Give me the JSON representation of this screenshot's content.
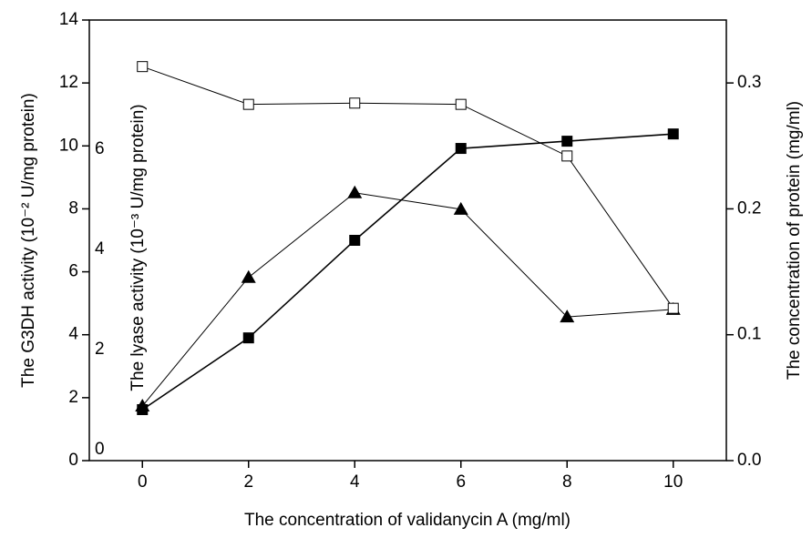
{
  "chart_data": {
    "type": "line",
    "x_label": "The concentration of validanycin A (mg/ml)",
    "y_label": "The G3DH activity (10⁻² U/mg protein)",
    "y3_label": "The lyase activity (10⁻³ U/mg protein)",
    "y2_label": "The concentration of protein (mg/ml)",
    "x": [
      0,
      2,
      4,
      6,
      8,
      10
    ],
    "xlim": [
      -1,
      11
    ],
    "xticks": [
      0,
      2,
      4,
      6,
      8,
      10
    ],
    "ylim": [
      0,
      14
    ],
    "yticks": [
      0,
      2,
      4,
      6,
      8,
      10,
      12,
      14
    ],
    "y2lim": [
      0,
      0.35
    ],
    "y2ticks": [
      {
        "value": 0,
        "label": "0.0"
      },
      0.1,
      0.2,
      0.3
    ],
    "y3lim": [
      -0.22,
      8.58
    ],
    "y3ticks": [
      0,
      2,
      4,
      6
    ],
    "series": [
      {
        "color": "#000000",
        "marker": "square",
        "values": [
          1.62,
          3.9,
          7.0,
          9.92,
          10.15,
          10.38
        ]
      },
      {
        "color": "#000000",
        "marker": "triangle",
        "axis": "y3",
        "values": [
          0.87,
          3.44,
          5.13,
          4.8,
          2.65,
          2.8
        ]
      },
      {
        "color": "#000000",
        "marker": "square-open",
        "axis": "y2",
        "values": [
          0.313,
          0.283,
          0.284,
          0.283,
          0.242,
          0.121
        ]
      }
    ]
  }
}
